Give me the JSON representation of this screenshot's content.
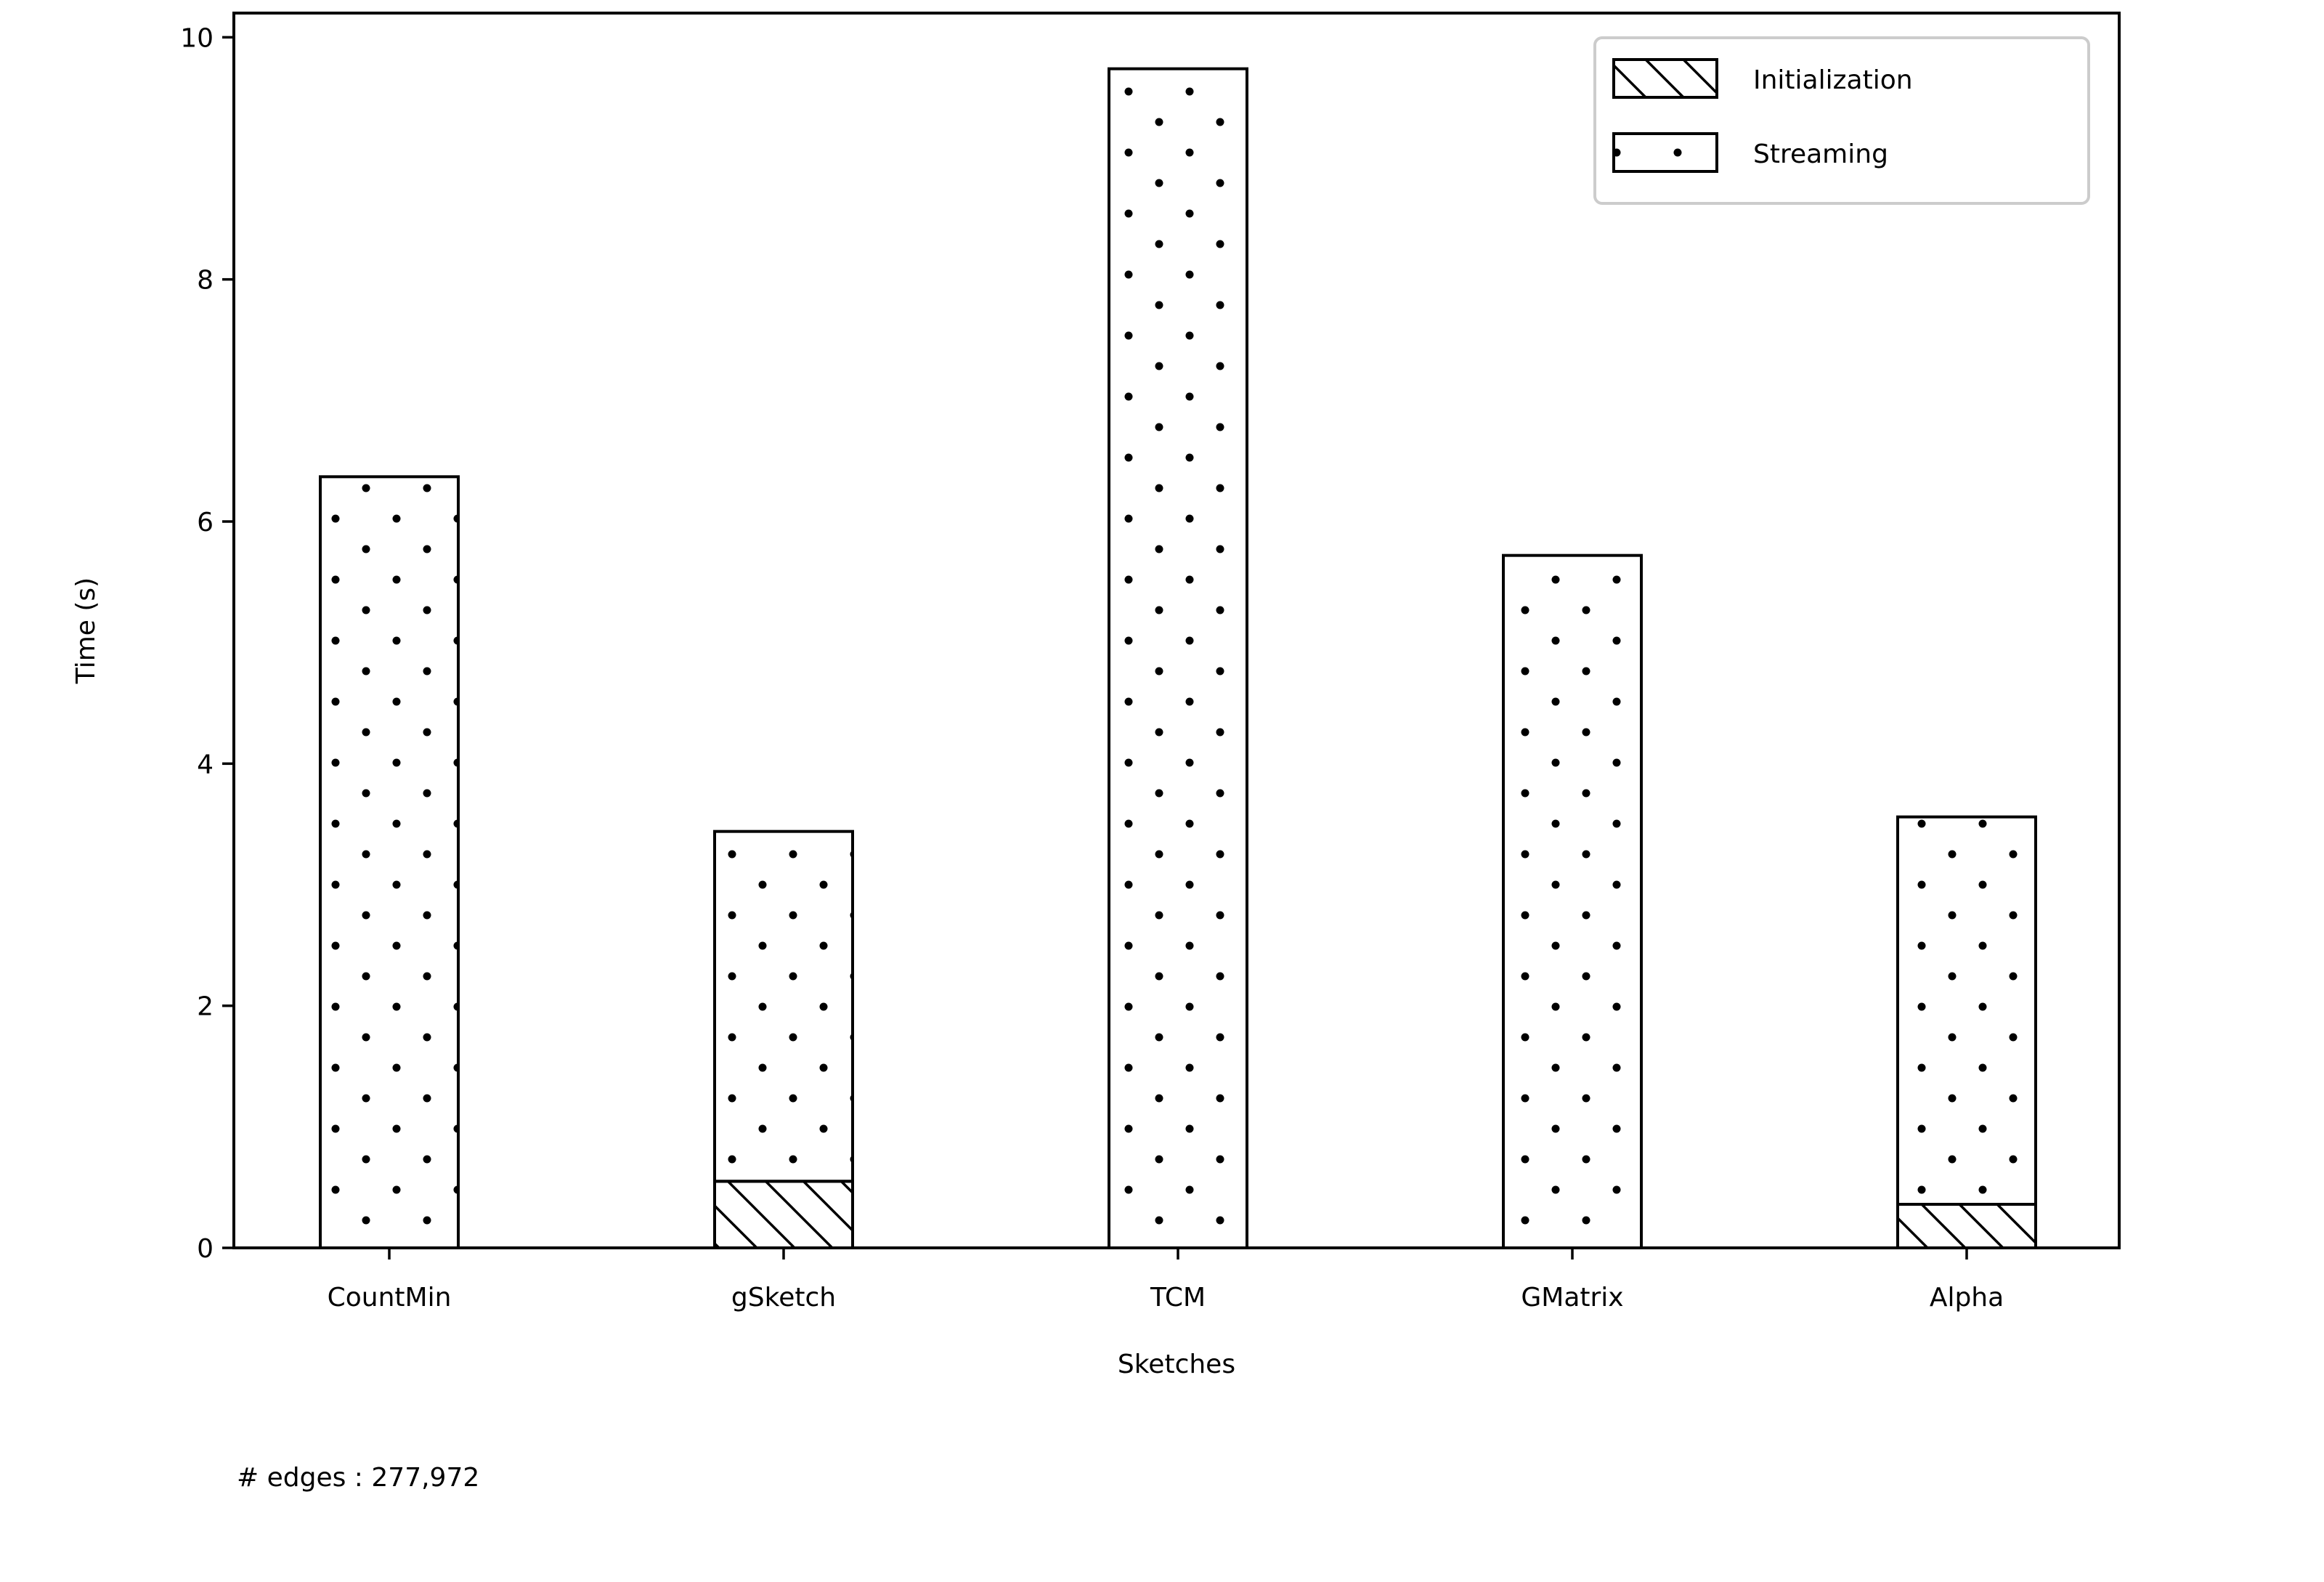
{
  "chart_data": {
    "type": "bar",
    "stacked": true,
    "categories": [
      "CountMin",
      "gSketch",
      "TCM",
      "GMatrix",
      "Alpha"
    ],
    "series": [
      {
        "name": "Initialization",
        "values": [
          0.0,
          0.55,
          0.0,
          0.0,
          0.36
        ],
        "pattern": "hatch"
      },
      {
        "name": "Streaming",
        "values": [
          6.37,
          2.89,
          9.74,
          5.72,
          3.2
        ],
        "pattern": "dots"
      }
    ],
    "xlabel": "Sketches",
    "ylabel": "Time (s)",
    "ylim": [
      0,
      10.2
    ],
    "yticks": [
      0,
      2,
      4,
      6,
      8,
      10
    ],
    "grid": false,
    "legend_position": "top-right",
    "colors": {
      "edge": "#000000",
      "fill": "#ffffff"
    }
  },
  "note": "# edges : 277,972"
}
